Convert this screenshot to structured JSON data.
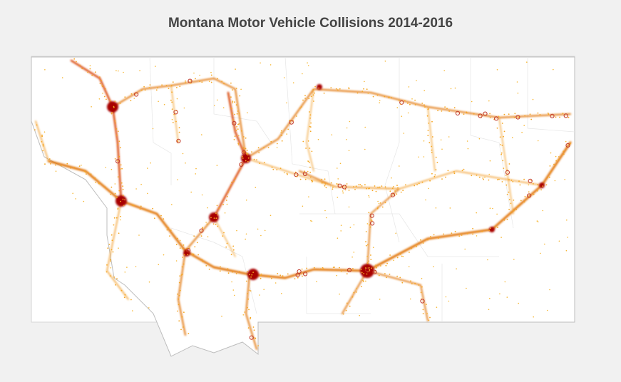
{
  "title": "Montana Motor Vehicle Collisions 2014-2016"
}
